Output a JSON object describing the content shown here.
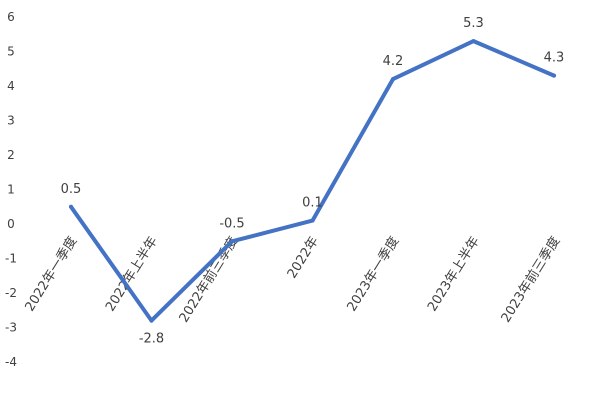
{
  "chart_data": {
    "type": "line",
    "title": "",
    "xlabel": "",
    "ylabel": "",
    "categories": [
      "2022年一季度",
      "2022年上半年",
      "2022年前三季度",
      "2022年",
      "2023年一季度",
      "2023年上半年",
      "2023年前三季度"
    ],
    "series": [
      {
        "values": [
          0.5,
          -2.8,
          -0.5,
          0.1,
          4.2,
          5.3,
          4.3
        ],
        "color": "#4472C4"
      }
    ],
    "data_labels": [
      "0.5",
      "-2.8",
      "-0.5",
      "0.1",
      "4.2",
      "5.3",
      "4.3"
    ],
    "ylim": [
      -4,
      6
    ],
    "yticks": [
      -4,
      -3,
      -2,
      -1,
      0,
      1,
      2,
      3,
      4,
      5,
      6
    ],
    "ytick_labels": [
      "-4",
      "-3",
      "-2",
      "-1",
      "0",
      "1",
      "2",
      "3",
      "4",
      "5",
      "6"
    ],
    "grid": false,
    "legend": "none"
  }
}
